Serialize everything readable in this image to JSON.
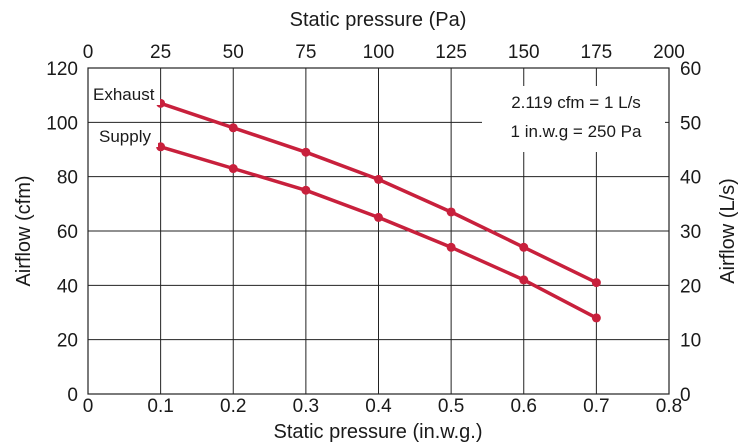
{
  "chart_data": {
    "type": "line",
    "title": "",
    "x": [
      0.1,
      0.2,
      0.3,
      0.4,
      0.5,
      0.6,
      0.7
    ],
    "series": [
      {
        "name": "Exhaust",
        "values": [
          107,
          98,
          89,
          79,
          67,
          54,
          41
        ]
      },
      {
        "name": "Supply",
        "values": [
          91,
          83,
          75,
          65,
          54,
          42,
          28
        ]
      }
    ],
    "xlabel": "Static pressure (in.w.g.)",
    "ylabel": "Airflow (cfm)",
    "xlim": [
      0,
      0.8
    ],
    "ylim": [
      0,
      120
    ],
    "x_ticks": [
      "0",
      "0.1",
      "0.2",
      "0.3",
      "0.4",
      "0.5",
      "0.6",
      "0.7",
      "0.8"
    ],
    "y_ticks": [
      "0",
      "20",
      "40",
      "60",
      "80",
      "100",
      "120"
    ],
    "secondary_x": {
      "label": "Static pressure (Pa)",
      "lim": [
        0,
        200
      ],
      "ticks": [
        "0",
        "25",
        "50",
        "75",
        "100",
        "125",
        "150",
        "175",
        "200"
      ]
    },
    "secondary_y": {
      "label": "Airflow (L/s)",
      "lim": [
        0,
        60
      ],
      "ticks": [
        "0",
        "10",
        "20",
        "30",
        "40",
        "50",
        "60"
      ]
    },
    "annotations": [
      "2.119 cfm = 1 L/s",
      "1 in.w.g = 250 Pa"
    ],
    "grid": true,
    "line_color": "#c8203c",
    "grid_color": "#222222"
  }
}
